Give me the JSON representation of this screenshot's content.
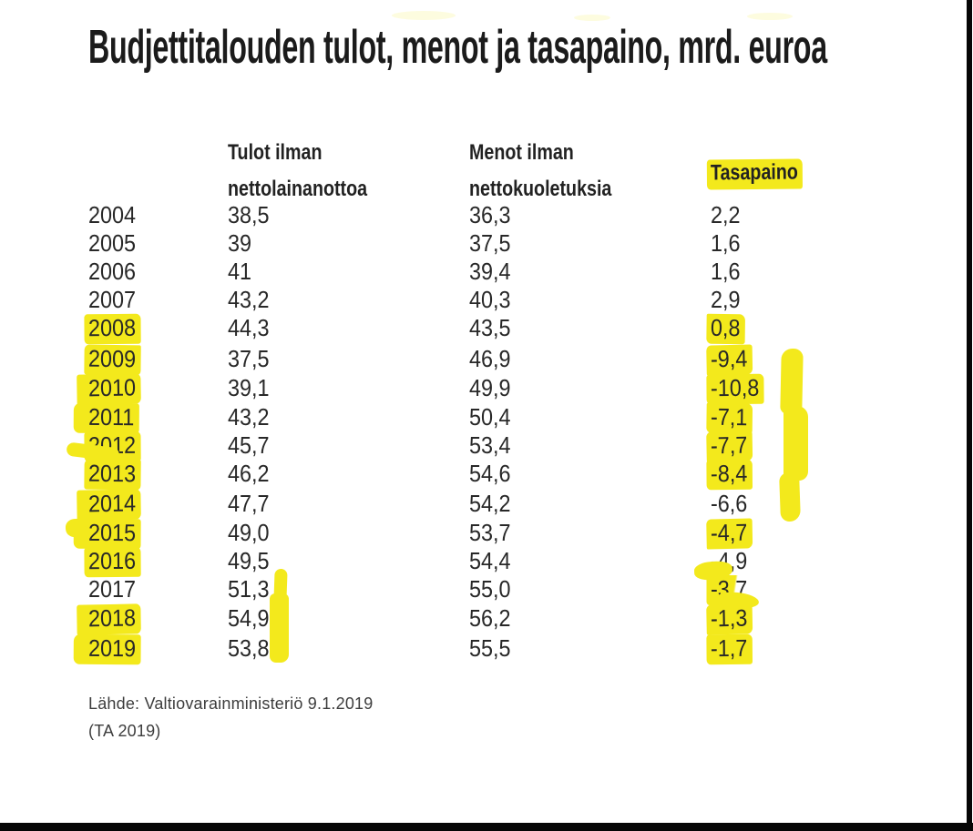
{
  "title": "Budjettitalouden tulot, menot ja tasapaino, mrd. euroa",
  "colors": {
    "highlight": "#f3e91c",
    "text": "#282828"
  },
  "table": {
    "headers": {
      "tulot": {
        "line1": "Tulot ilman",
        "line2": "nettolainanottoa"
      },
      "menot": {
        "line1": "Menot ilman",
        "line2": "nettokuoletuksia"
      },
      "tasapaino": {
        "label": "Tasapaino",
        "highlighted": true
      }
    },
    "rows": [
      {
        "year": "2004",
        "tulot": "38,5",
        "menot": "36,3",
        "tasapaino": "2,2",
        "year_hl": false,
        "bal_hl": false
      },
      {
        "year": "2005",
        "tulot": "39",
        "menot": "37,5",
        "tasapaino": "1,6",
        "year_hl": false,
        "bal_hl": false
      },
      {
        "year": "2006",
        "tulot": "41",
        "menot": "39,4",
        "tasapaino": "1,6",
        "year_hl": false,
        "bal_hl": false
      },
      {
        "year": "2007",
        "tulot": "43,2",
        "menot": "40,3",
        "tasapaino": "2,9",
        "year_hl": false,
        "bal_hl": false
      },
      {
        "year": "2008",
        "tulot": "44,3",
        "menot": "43,5",
        "tasapaino": "0,8",
        "year_hl": true,
        "bal_hl": true
      },
      {
        "year": "2009",
        "tulot": "37,5",
        "menot": "46,9",
        "tasapaino": "-9,4",
        "year_hl": true,
        "bal_hl": true
      },
      {
        "year": "2010",
        "tulot": "39,1",
        "menot": "49,9",
        "tasapaino": "-10,8",
        "year_hl": true,
        "bal_hl": true
      },
      {
        "year": "2011",
        "tulot": "43,2",
        "menot": "50,4",
        "tasapaino": "-7,1",
        "year_hl": true,
        "bal_hl": true
      },
      {
        "year": "2012",
        "tulot": "45,7",
        "menot": "53,4",
        "tasapaino": "-7,7",
        "year_hl": true,
        "bal_hl": true
      },
      {
        "year": "2013",
        "tulot": "46,2",
        "menot": "54,6",
        "tasapaino": "-8,4",
        "year_hl": true,
        "bal_hl": true
      },
      {
        "year": "2014",
        "tulot": "47,7",
        "menot": "54,2",
        "tasapaino": "-6,6",
        "year_hl": true,
        "bal_hl": false
      },
      {
        "year": "2015",
        "tulot": "49,0",
        "menot": "53,7",
        "tasapaino": "-4,7",
        "year_hl": true,
        "bal_hl": true
      },
      {
        "year": "2016",
        "tulot": "49,5",
        "menot": "54,4",
        "tasapaino": "-4,9",
        "year_hl": true,
        "bal_hl": false
      },
      {
        "year": "2017",
        "tulot": "51,3",
        "menot": "55,0",
        "tasapaino": "-3,7",
        "year_hl": false,
        "bal_hl": "partial"
      },
      {
        "year": "2018",
        "tulot": "54,9",
        "menot": "56,2",
        "tasapaino": "-1,3",
        "year_hl": true,
        "bal_hl": true
      },
      {
        "year": "2019",
        "tulot": "53,8",
        "menot": "55,5",
        "tasapaino": "-1,7",
        "year_hl": true,
        "bal_hl": true
      }
    ]
  },
  "source": {
    "line1": "Lähde: Valtiovarainministeriö 9.1.2019",
    "line2": "(TA 2019)"
  },
  "chart_data": {
    "type": "table",
    "title": "Budjettitalouden tulot, menot ja tasapaino, mrd. euroa",
    "columns": [
      "",
      "Tulot ilman nettolainanottoa",
      "Menot ilman nettokuoletuksia",
      "Tasapaino"
    ],
    "x": [
      2004,
      2005,
      2006,
      2007,
      2008,
      2009,
      2010,
      2011,
      2012,
      2013,
      2014,
      2015,
      2016,
      2017,
      2018,
      2019
    ],
    "series": [
      {
        "name": "Tulot ilman nettolainanottoa",
        "values": [
          38.5,
          39,
          41,
          43.2,
          44.3,
          37.5,
          39.1,
          43.2,
          45.7,
          46.2,
          47.7,
          49.0,
          49.5,
          51.3,
          54.9,
          53.8
        ]
      },
      {
        "name": "Menot ilman nettokuoletuksia",
        "values": [
          36.3,
          37.5,
          39.4,
          40.3,
          43.5,
          46.9,
          49.9,
          50.4,
          53.4,
          54.6,
          54.2,
          53.7,
          54.4,
          55.0,
          56.2,
          55.5
        ]
      },
      {
        "name": "Tasapaino",
        "values": [
          2.2,
          1.6,
          1.6,
          2.9,
          0.8,
          -9.4,
          -10.8,
          -7.1,
          -7.7,
          -8.4,
          -6.6,
          -4.7,
          -4.9,
          -3.7,
          -1.3,
          -1.7
        ]
      }
    ],
    "annotations": "Yellow marker highlights on Tasapaino header, years 2008-2016 and 2018-2019, and most negative balance values",
    "source": "Lähde: Valtiovarainministeriö 9.1.2019 (TA 2019)"
  }
}
